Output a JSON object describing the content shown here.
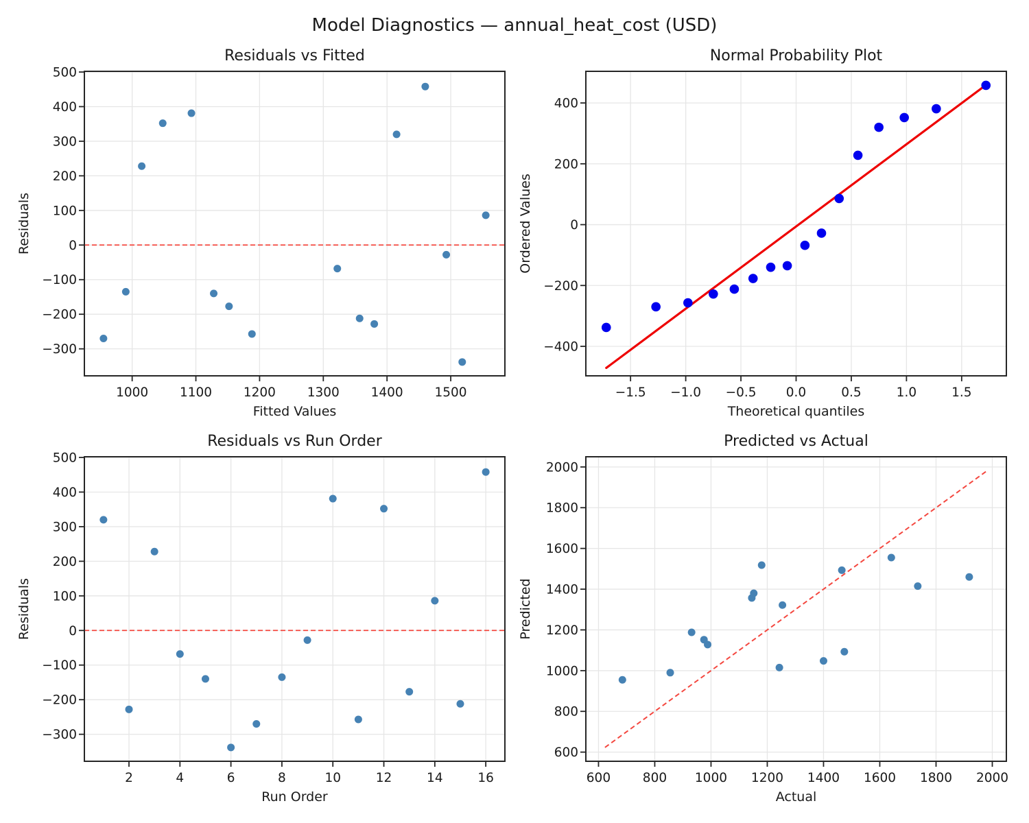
{
  "suptitle": "Model Diagnostics — annual_heat_cost (USD)",
  "colors": {
    "scatter_marker": "#4682b4",
    "prob_marker": "#0000ee",
    "fit_line": "#ee0000",
    "reference_dashed": "#f4473f",
    "grid": "#e6e6e6",
    "spine": "#262626",
    "text": "#1a1a1a"
  },
  "chart_data": [
    {
      "id": "residuals-vs-fitted",
      "type": "scatter",
      "title": "Residuals vs Fitted",
      "xlabel": "Fitted Values",
      "ylabel": "Residuals",
      "x": [
        955,
        990,
        1015,
        1048,
        1093,
        1128,
        1152,
        1188,
        1322,
        1357,
        1380,
        1415,
        1460,
        1493,
        1518,
        1555
      ],
      "y": [
        -270,
        -135,
        228,
        352,
        381,
        -140,
        -177,
        -257,
        -68,
        -212,
        -228,
        320,
        458,
        -28,
        -338,
        86
      ],
      "xlim": [
        925,
        1585
      ],
      "ylim": [
        -378,
        502
      ],
      "xticks": [
        1000,
        1100,
        1200,
        1300,
        1400,
        1500
      ],
      "yticks": [
        -300,
        -200,
        -100,
        0,
        100,
        200,
        300,
        400,
        500
      ],
      "hline": 0,
      "grid": true,
      "marker_color": "#4682b4",
      "marker_radius": 5.5,
      "ref_color": "#f4473f"
    },
    {
      "id": "normal-probability-plot",
      "type": "scatter",
      "title": "Normal Probability Plot",
      "xlabel": "Theoretical quantiles",
      "ylabel": "Ordered Values",
      "x": [
        -1.72,
        -1.27,
        -0.98,
        -0.75,
        -0.56,
        -0.39,
        -0.23,
        -0.08,
        0.08,
        0.23,
        0.39,
        0.56,
        0.75,
        0.98,
        1.27,
        1.72
      ],
      "y": [
        -338,
        -270,
        -257,
        -228,
        -212,
        -177,
        -140,
        -135,
        -68,
        -28,
        86,
        228,
        320,
        352,
        381,
        458
      ],
      "fit_line": {
        "x1": -1.72,
        "y1": -471,
        "x2": 1.72,
        "y2": 459
      },
      "xlim": [
        -1.905,
        1.905
      ],
      "ylim": [
        -497,
        504
      ],
      "xticks": [
        -1.5,
        -1.0,
        -0.5,
        0.0,
        0.5,
        1.0,
        1.5
      ],
      "xtick_decimals": 1,
      "yticks": [
        -400,
        -200,
        0,
        200,
        400
      ],
      "grid": true,
      "marker_color": "#0000ee",
      "marker_radius": 6.8,
      "line_color": "#ee0000"
    },
    {
      "id": "residuals-vs-run-order",
      "type": "scatter",
      "title": "Residuals vs Run Order",
      "xlabel": "Run Order",
      "ylabel": "Residuals",
      "x": [
        1,
        2,
        3,
        4,
        5,
        6,
        7,
        8,
        9,
        10,
        11,
        12,
        13,
        14,
        15,
        16
      ],
      "y": [
        320,
        -228,
        228,
        -68,
        -140,
        -338,
        -270,
        -135,
        -28,
        381,
        -257,
        352,
        -177,
        86,
        -212,
        458
      ],
      "xlim": [
        0.25,
        16.75
      ],
      "ylim": [
        -378,
        502
      ],
      "xticks": [
        2,
        4,
        6,
        8,
        10,
        12,
        14,
        16
      ],
      "yticks": [
        -300,
        -200,
        -100,
        0,
        100,
        200,
        300,
        400,
        500
      ],
      "hline": 0,
      "grid": true,
      "marker_color": "#4682b4",
      "marker_radius": 5.5,
      "ref_color": "#f4473f"
    },
    {
      "id": "predicted-vs-actual",
      "type": "scatter",
      "title": "Predicted vs Actual",
      "xlabel": "Actual",
      "ylabel": "Predicted",
      "x": [
        685,
        855,
        1243,
        1400,
        1474,
        988,
        975,
        931,
        1254,
        1145,
        1152,
        1735,
        1918,
        1465,
        1180,
        1641
      ],
      "y": [
        955,
        990,
        1015,
        1048,
        1093,
        1128,
        1152,
        1188,
        1322,
        1357,
        1380,
        1415,
        1460,
        1493,
        1518,
        1555
      ],
      "identity_line": {
        "x1": 623,
        "y1": 623,
        "x2": 1982,
        "y2": 1982
      },
      "xlim": [
        555,
        2050
      ],
      "ylim": [
        555,
        2050
      ],
      "xticks": [
        600,
        800,
        1000,
        1200,
        1400,
        1600,
        1800,
        2000
      ],
      "yticks": [
        600,
        800,
        1000,
        1200,
        1400,
        1600,
        1800,
        2000
      ],
      "grid": true,
      "marker_color": "#4682b4",
      "marker_radius": 5.5,
      "ref_color": "#f4473f"
    }
  ]
}
